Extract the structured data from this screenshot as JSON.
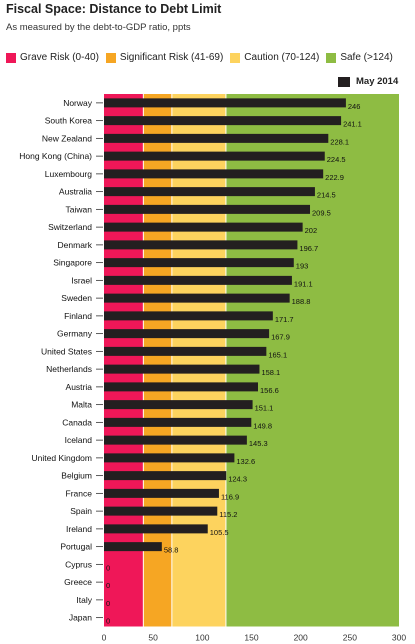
{
  "chart_data": {
    "type": "bar",
    "orientation": "horizontal",
    "title": "Fiscal Space: Distance to Debt Limit",
    "subtitle": "As measured by the debt-to-GDP ratio, ppts",
    "zones": [
      {
        "label": "Grave Risk (0-40)",
        "from": 0,
        "to": 40,
        "color": "#ef1758"
      },
      {
        "label": "Significant Risk (41-69)",
        "from": 40,
        "to": 69,
        "color": "#f6a623"
      },
      {
        "label": "Caution (70-124)",
        "from": 69,
        "to": 124,
        "color": "#fdd35e"
      },
      {
        "label": "Safe (>124)",
        "from": 124,
        "to": 300,
        "color": "#8ebc43"
      }
    ],
    "series": [
      {
        "name": "May 2014",
        "color": "#231f20",
        "values": [
          246,
          241.1,
          228.1,
          224.5,
          222.9,
          214.5,
          209.5,
          202,
          196.7,
          193,
          191.1,
          188.8,
          171.7,
          167.9,
          165.1,
          158.1,
          156.6,
          151.1,
          149.8,
          145.3,
          132.6,
          124.3,
          116.9,
          115.2,
          105.5,
          58.8,
          0,
          0,
          0,
          0
        ],
        "labels": [
          "246",
          "241.1",
          "228.1",
          "224.5",
          "222.9",
          "214.5",
          "209.5",
          "202",
          "196.7",
          "193",
          "191.1",
          "188.8",
          "171.7",
          "167.9",
          "165.1",
          "158.1",
          "156.6",
          "151.1",
          "149.8",
          "145.3",
          "132.6",
          "124.3",
          "116.9",
          "115.2",
          "105.5",
          "58.8",
          "0",
          "0",
          "0",
          "0"
        ]
      }
    ],
    "categories": [
      "Norway",
      "South Korea",
      "New Zealand",
      "Hong Kong (China)",
      "Luxembourg",
      "Australia",
      "Taiwan",
      "Switzerland",
      "Denmark",
      "Singapore",
      "Israel",
      "Sweden",
      "Finland",
      "Germany",
      "United States",
      "Netherlands",
      "Austria",
      "Malta",
      "Canada",
      "Iceland",
      "United Kingdom",
      "Belgium",
      "France",
      "Spain",
      "Ireland",
      "Portugal",
      "Cyprus",
      "Greece",
      "Italy",
      "Japan"
    ],
    "xlim": [
      0,
      300
    ],
    "xticks": [
      "0",
      "50",
      "100",
      "150",
      "200",
      "250",
      "300"
    ],
    "grid": false,
    "legend_position": "top-right"
  }
}
